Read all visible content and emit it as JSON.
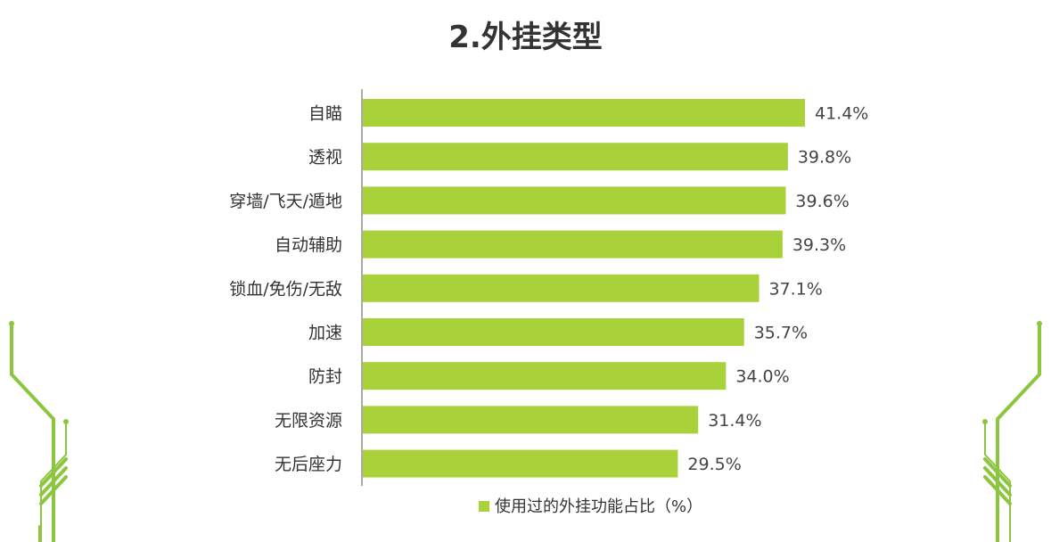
{
  "chart_data": {
    "type": "bar",
    "orientation": "horizontal",
    "title": "2.外挂类型",
    "categories": [
      "自瞄",
      "透视",
      "穿墙/飞天/遁地",
      "自动辅助",
      "锁血/免伤/无敌",
      "加速",
      "防封",
      "无限资源",
      "无后座力"
    ],
    "series": [
      {
        "name": "使用过的外挂功能占比（%）",
        "values": [
          41.4,
          39.8,
          39.6,
          39.3,
          37.1,
          35.7,
          34.0,
          31.4,
          29.5
        ],
        "color": "#a9d13a"
      }
    ],
    "data_labels": [
      "41.4%",
      "39.8%",
      "39.6%",
      "39.3%",
      "37.1%",
      "35.7%",
      "34.0%",
      "31.4%",
      "29.5%"
    ],
    "xlim": [
      0,
      45
    ],
    "grid": false,
    "legend_position": "bottom"
  }
}
